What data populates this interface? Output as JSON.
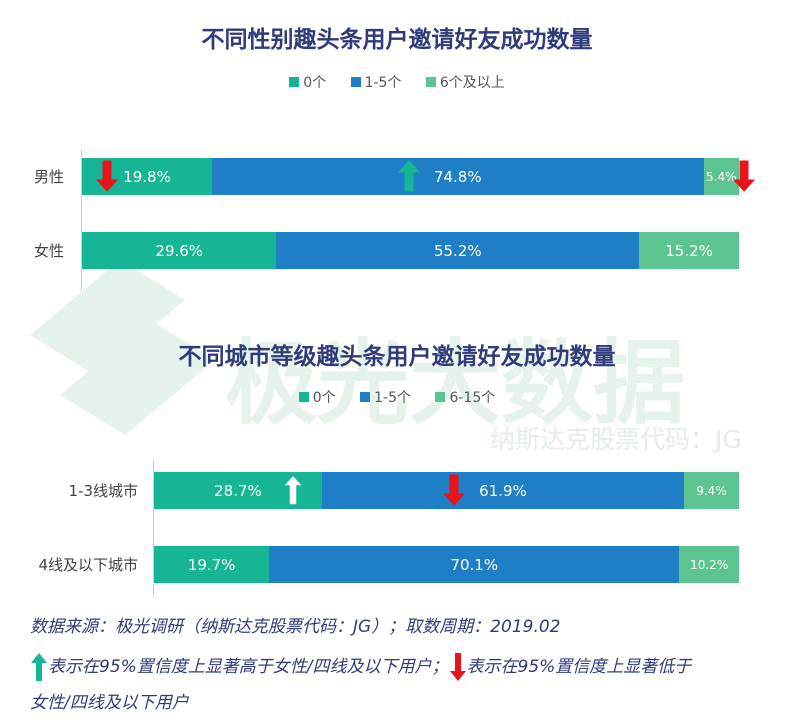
{
  "colors": {
    "c0": "#16b596",
    "c1": "#1e7fc6",
    "c2": "#5cc490",
    "up": "#16b596",
    "down": "#e8141b",
    "title": "#2f3b7a"
  },
  "watermark": {
    "brand": "极光大数据",
    "stock": "纳斯达克股票代码：JG"
  },
  "chart_data": [
    {
      "type": "bar",
      "stacked": true,
      "orientation": "horizontal",
      "title": "不同性别趣头条用户邀请好友成功数量",
      "categories": [
        "男性",
        "女性"
      ],
      "series": [
        {
          "name": "0个",
          "values": [
            19.8,
            29.6
          ],
          "labels": [
            "19.8%",
            "29.6%"
          ]
        },
        {
          "name": "1-5个",
          "values": [
            74.8,
            55.2
          ],
          "labels": [
            "74.8%",
            "55.2%"
          ]
        },
        {
          "name": "6个及以上",
          "values": [
            5.4,
            15.2
          ],
          "labels": [
            "5.4%",
            "15.2%"
          ]
        }
      ],
      "significance": [
        {
          "category": "男性",
          "series": "0个",
          "direction": "down"
        },
        {
          "category": "男性",
          "series": "1-5个",
          "direction": "up"
        },
        {
          "category": "男性",
          "series": "6个及以上",
          "direction": "down"
        }
      ],
      "legend_position": "top",
      "grid": false,
      "xlim": [
        0,
        100
      ]
    },
    {
      "type": "bar",
      "stacked": true,
      "orientation": "horizontal",
      "title": "不同城市等级趣头条用户邀请好友成功数量",
      "categories": [
        "1-3线城市",
        "4线及以下城市"
      ],
      "series": [
        {
          "name": "0个",
          "values": [
            28.7,
            19.7
          ],
          "labels": [
            "28.7%",
            "19.7%"
          ]
        },
        {
          "name": "1-5个",
          "values": [
            61.9,
            70.1
          ],
          "labels": [
            "61.9%",
            "70.1%"
          ]
        },
        {
          "name": "6-15个",
          "values": [
            9.4,
            10.2
          ],
          "labels": [
            "9.4%",
            "10.2%"
          ]
        }
      ],
      "significance": [
        {
          "category": "1-3线城市",
          "series": "0个",
          "direction": "up"
        },
        {
          "category": "1-3线城市",
          "series": "1-5个",
          "direction": "down"
        }
      ],
      "legend_position": "top",
      "grid": false,
      "xlim": [
        0,
        100
      ]
    }
  ],
  "notes": {
    "source": "数据来源：极光调研（纳斯达克股票代码：JG）；取数周期：2019.02",
    "legend_up": "表示在95%置信度上显著高于女性/四线及以下用户；",
    "legend_down": "表示在95%置信度上显著低于",
    "legend_down_cont": "女性/四线及以下用户"
  }
}
